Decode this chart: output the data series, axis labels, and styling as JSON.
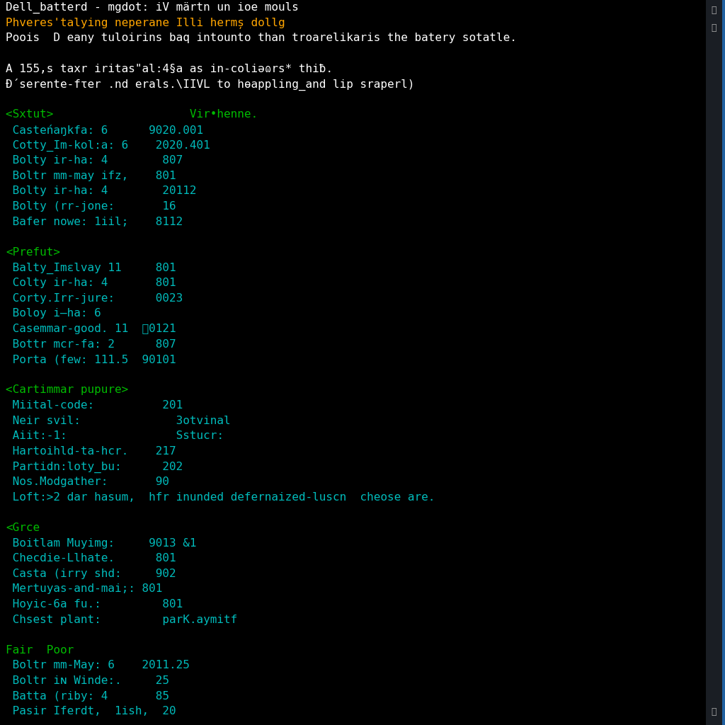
{
  "background_color": "#000000",
  "scrollbar_bg": "#1a1e24",
  "scrollbar_accent": "#2060a0",
  "title_color": "#ffffff",
  "orange_color": "#FFA500",
  "green_color": "#00BB00",
  "white_color": "#ffffff",
  "cyan_color": "#00BBBB",
  "font_size": 11.5,
  "lines": [
    {
      "text": "Dell_batterd - mgdot: iV märtn un ioe mouls",
      "color": "#ffffff"
    },
    {
      "text": "Phveres'talying neperane Illi hermș dollg",
      "color": "#FFA500"
    },
    {
      "text": "Poois  D eany tuloirins baq intounto than troarelikaris the batery sotatle.",
      "color": "#ffffff"
    },
    {
      "text": "",
      "color": "#ffffff"
    },
    {
      "text": "A 155,s taxr iritas\"al:4§a as in-coliəɷrs* thiƀ.",
      "color": "#ffffff"
    },
    {
      "text": "Đ́serente-fτer .nd erals.\\IIVL to hɵappling_and lip sraperl)",
      "color": "#ffffff"
    },
    {
      "text": "",
      "color": "#ffffff"
    },
    {
      "text": "<Sxtut>                    Vir•henne.",
      "color": "#00BB00"
    },
    {
      "text": " Casteńaŋkfa: 6      9020.001",
      "color": "#00BBBB"
    },
    {
      "text": " Cotty_Im-kol:a: 6    2020.401",
      "color": "#00BBBB"
    },
    {
      "text": " Bolty ir-ha: 4        807",
      "color": "#00BBBB"
    },
    {
      "text": " Boltr mm-may ifz,    801",
      "color": "#00BBBB"
    },
    {
      "text": " Bolty ir-ha: 4        20112",
      "color": "#00BBBB"
    },
    {
      "text": " Bolty (rr-jone:       16",
      "color": "#00BBBB"
    },
    {
      "text": " Bafer nowe: 1iil;    8112",
      "color": "#00BBBB"
    },
    {
      "text": "",
      "color": "#ffffff"
    },
    {
      "text": "<Prefut>",
      "color": "#00BB00"
    },
    {
      "text": " Balty_Imεlvay 11     801",
      "color": "#00BBBB"
    },
    {
      "text": " Colty ir-ha: 4       801",
      "color": "#00BBBB"
    },
    {
      "text": " Corty.Irr-jure:      0023",
      "color": "#00BBBB"
    },
    {
      "text": " Boloy i–ha: 6",
      "color": "#00BBBB"
    },
    {
      "text": " Casemmar-good. 11  0121",
      "color": "#00BBBB"
    },
    {
      "text": " Bottr mcr-fa: 2      807",
      "color": "#00BBBB"
    },
    {
      "text": " Porta (few: 111.5  90101",
      "color": "#00BBBB"
    },
    {
      "text": "",
      "color": "#ffffff"
    },
    {
      "text": "<Cartimmar pupure>",
      "color": "#00BB00"
    },
    {
      "text": " Miital-code:          201",
      "color": "#00BBBB"
    },
    {
      "text": " Neir svil:              3otvinal",
      "color": "#00BBBB"
    },
    {
      "text": " Aiit:-1:                Sstucr:",
      "color": "#00BBBB"
    },
    {
      "text": " Hartoihld-ta-hcr.    217",
      "color": "#00BBBB"
    },
    {
      "text": " Partidn:loty_bu:      202",
      "color": "#00BBBB"
    },
    {
      "text": " Nos.Modgather:       90",
      "color": "#00BBBB"
    },
    {
      "text": " Loft:>2 dar hasum,  hfr inunded defernaized-luscn  cheose are.",
      "color": "#00BBBB"
    },
    {
      "text": "",
      "color": "#ffffff"
    },
    {
      "text": "<Grce",
      "color": "#00BB00"
    },
    {
      "text": " Boitlam Muyimg:     9013 &1",
      "color": "#00BBBB"
    },
    {
      "text": " Checdie-Llhate.      801",
      "color": "#00BBBB"
    },
    {
      "text": " Casta (irry shd:     902",
      "color": "#00BBBB"
    },
    {
      "text": " Mertuyas-and-mai;: 801",
      "color": "#00BBBB"
    },
    {
      "text": " Hoyic-6a fu.:         801",
      "color": "#00BBBB"
    },
    {
      "text": " Chsest plant:         parK.aymitf",
      "color": "#00BBBB"
    },
    {
      "text": "",
      "color": "#ffffff"
    },
    {
      "text": "Fair  Poor",
      "color": "#00BB00"
    },
    {
      "text": " Boltr mm-May: 6    2011.25",
      "color": "#00BBBB"
    },
    {
      "text": " Boltr iɴ Winde:.     25",
      "color": "#00BBBB"
    },
    {
      "text": " Batta (riby: 4       85",
      "color": "#00BBBB"
    },
    {
      "text": " Pasir Iferdt,  1ish,  20",
      "color": "#00BBBB"
    }
  ]
}
